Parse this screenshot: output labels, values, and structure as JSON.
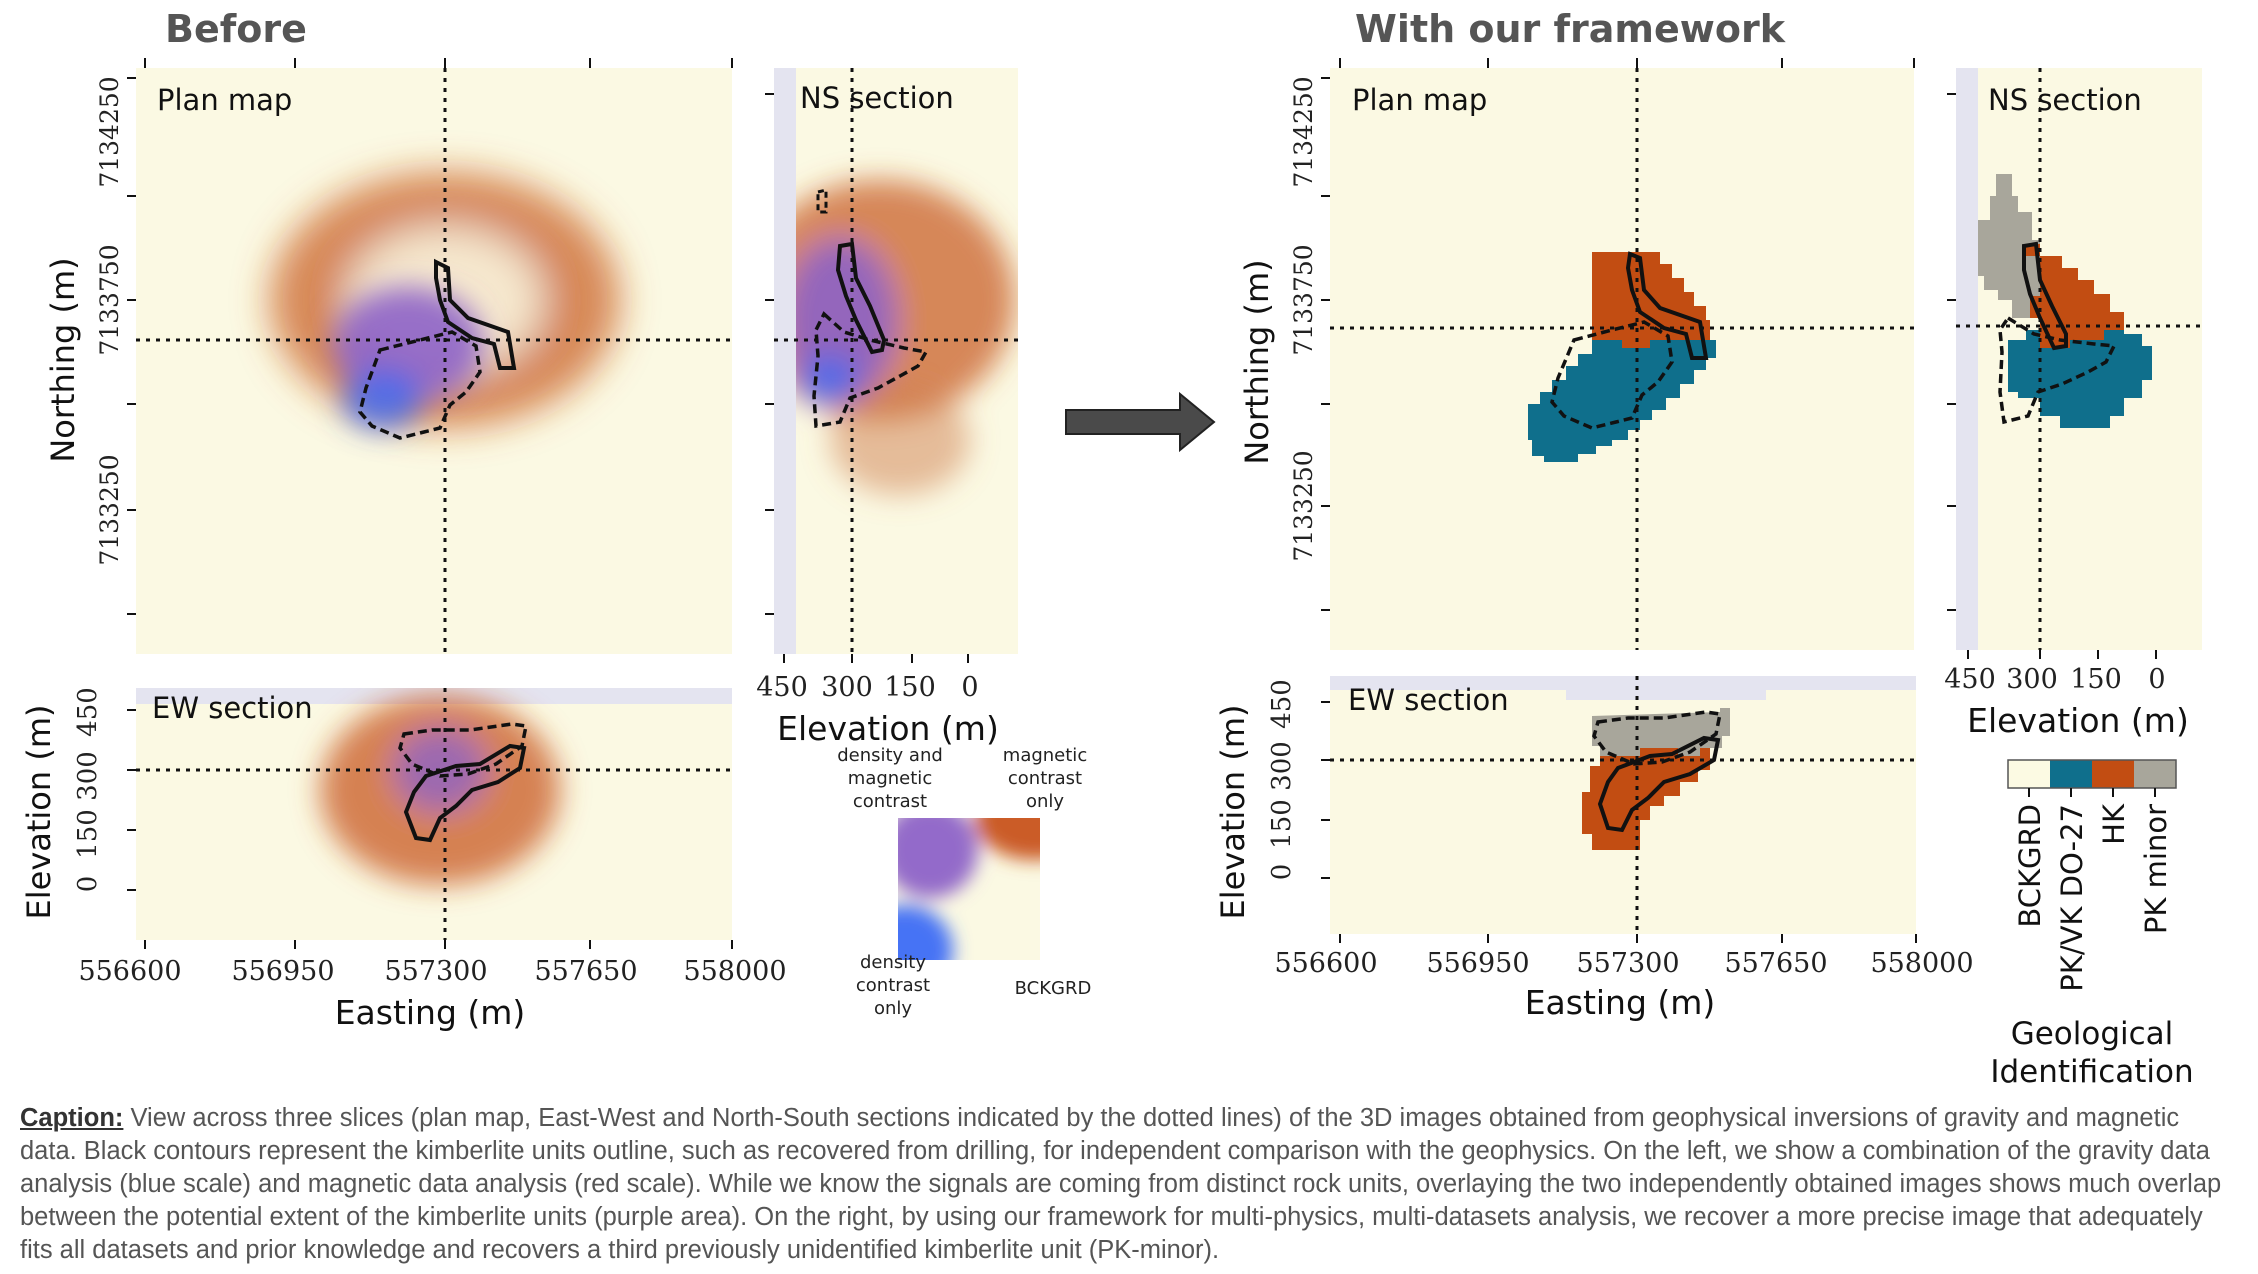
{
  "panels": {
    "before_title": "Before",
    "after_title": "With our framework"
  },
  "subplot_labels": {
    "plan": "Plan map",
    "ns": "NS section",
    "ew": "EW section"
  },
  "axes": {
    "northing_label": "Northing (m)",
    "easting_label": "Easting (m)",
    "elevation_label": "Elevation (m)",
    "northing_ticks": [
      "7134250",
      "7133750",
      "7133250"
    ],
    "easting_ticks": [
      "556600",
      "556950",
      "557300",
      "557650",
      "558000"
    ],
    "elevation_ticks_vertical": [
      "0",
      "150",
      "300",
      "450"
    ],
    "elevation_ticks_horizontal": [
      "450",
      "300",
      "150",
      "0"
    ]
  },
  "legend_before": {
    "top_left": [
      "density and",
      "magnetic",
      "contrast"
    ],
    "top_right": [
      "magnetic",
      "contrast",
      "only"
    ],
    "bottom_left": [
      "density",
      "contrast",
      "only"
    ],
    "bottom_right": "BCKGRD",
    "colors": {
      "density": "#3d6cf5",
      "magnetic": "#c8531a",
      "both": "#8d63c8",
      "background": "#fbf9e3"
    }
  },
  "legend_after": {
    "title_line1": "Geological",
    "title_line2": "Identification",
    "categories": [
      {
        "label": "BCKGRD",
        "color": "#fcfae3"
      },
      {
        "label": "PK/VK DO-27",
        "color": "#0f6f8c"
      },
      {
        "label": "HK",
        "color": "#c24d12"
      },
      {
        "label": "PK minor",
        "color": "#a8a69b"
      }
    ]
  },
  "chart_data": [
    {
      "type": "heatmap",
      "panel": "Before",
      "view": "Plan map",
      "xlabel": "",
      "ylabel": "Northing (m)",
      "yticks": [
        7134250,
        7133750,
        7133250
      ]
    },
    {
      "type": "heatmap",
      "panel": "Before",
      "view": "NS section",
      "xlabel": "Elevation (m)",
      "xticks": [
        450,
        300,
        150,
        0
      ]
    },
    {
      "type": "heatmap",
      "panel": "Before",
      "view": "EW section",
      "xlabel": "Easting (m)",
      "ylabel": "Elevation (m)",
      "xticks": [
        556600,
        556950,
        557300,
        557650,
        558000
      ],
      "yticks": [
        0,
        150,
        300,
        450
      ]
    },
    {
      "type": "heatmap",
      "panel": "With our framework",
      "view": "Plan map",
      "ylabel": "Northing (m)",
      "yticks": [
        7134250,
        7133750,
        7133250
      ]
    },
    {
      "type": "heatmap",
      "panel": "With our framework",
      "view": "NS section",
      "xlabel": "Elevation (m)",
      "xticks": [
        450,
        300,
        150,
        0
      ]
    },
    {
      "type": "heatmap",
      "panel": "With our framework",
      "view": "EW section",
      "xlabel": "Easting (m)",
      "ylabel": "Elevation (m)",
      "xticks": [
        556600,
        556950,
        557300,
        557650,
        558000
      ],
      "yticks": [
        0,
        150,
        300,
        450
      ]
    }
  ],
  "caption": {
    "label": "Caption:",
    "text": " View across three slices (plan map, East-West and North-South sections indicated by the dotted lines) of the 3D images obtained from geophysical inversions of gravity and magnetic data. Black contours represent the kimberlite units outline, such as recovered from drilling, for independent comparison with the geophysics. On the left, we show a combination of the gravity data analysis (blue scale) and magnetic data analysis (red scale). While we know the signals are coming from distinct rock units, overlaying the two independently obtained images shows much overlap between the potential extent of the kimberlite units (purple area). On the right, by using our framework for multi-physics, multi-datasets analysis, we recover a more precise image that adequately fits all datasets and prior knowledge and recovers a third previously unidentified kimberlite unit (PK-minor)."
  }
}
